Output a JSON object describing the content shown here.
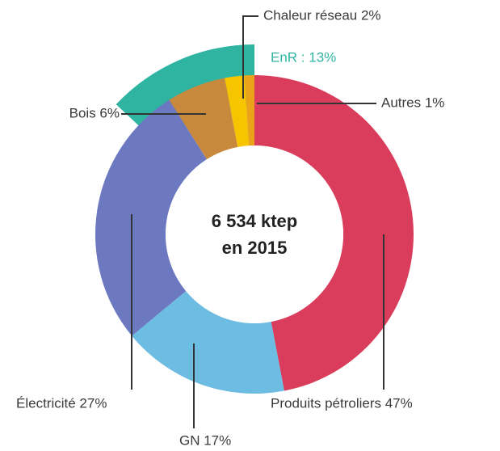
{
  "chart_data": {
    "type": "donut",
    "center_label": [
      "6 534 ktep",
      "en 2015"
    ],
    "categories": [
      "Produits pétroliers 47%",
      "GN 17%",
      "Électricité 27%",
      "Bois 6%",
      "Chaleur réseau 2%",
      "Autres 1%"
    ],
    "values": [
      47,
      17,
      27,
      6,
      2,
      1
    ],
    "colors": [
      "#d93d5b",
      "#6dbde2",
      "#6c79c0",
      "#c8893d",
      "#f7c500",
      "#e9a21a"
    ],
    "group": {
      "label": "EnR : 13%",
      "value": 13,
      "color": "#2fb4a2"
    }
  }
}
